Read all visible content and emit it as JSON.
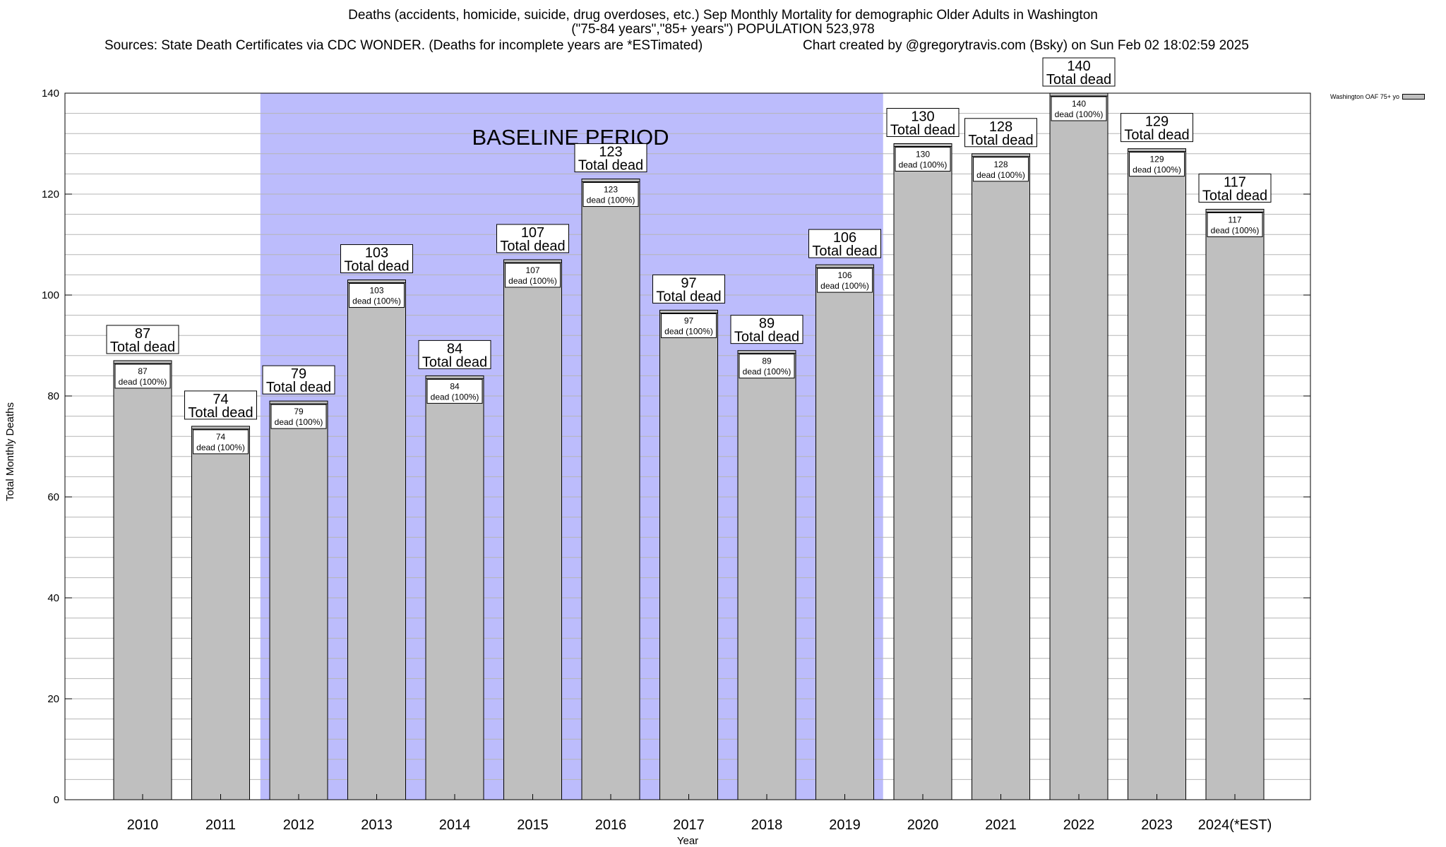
{
  "header": {
    "title_line1": "Deaths (accidents, homicide, suicide, drug overdoses, etc.) Sep Monthly Mortality for demographic Older Adults in Washington",
    "title_line2": "(\"75-84 years\",\"85+ years\") POPULATION 523,978",
    "sources": "Sources: State Death Certificates via CDC WONDER. (Deaths for incomplete years are *ESTimated)",
    "credit": "Chart created by @gregorytravis.com (Bsky) on Sun Feb 02 18:02:59 2025"
  },
  "chart_data": {
    "type": "bar",
    "xlabel": "Year",
    "ylabel": "Total Monthly Deaths",
    "ylim": [
      0,
      140
    ],
    "yticks": [
      0,
      20,
      40,
      60,
      80,
      100,
      120,
      140
    ],
    "categories": [
      "2010",
      "2011",
      "2012",
      "2013",
      "2014",
      "2015",
      "2016",
      "2017",
      "2018",
      "2019",
      "2020",
      "2021",
      "2022",
      "2023",
      "2024(*EST)"
    ],
    "series": [
      {
        "name": "Washington OAF 75+ yo",
        "values": [
          87,
          74,
          79,
          103,
          84,
          107,
          123,
          97,
          89,
          106,
          130,
          128,
          140,
          129,
          117
        ]
      }
    ],
    "top_label_suffix": "Total dead",
    "inner_label_suffix": "dead (100%)",
    "baseline": {
      "label": "BASELINE PERIOD",
      "from": "2012",
      "to": "2019",
      "color": "#bcbcfc"
    },
    "bar_color": "#bfbfbf",
    "grid": true,
    "legend_position": "top-right"
  }
}
